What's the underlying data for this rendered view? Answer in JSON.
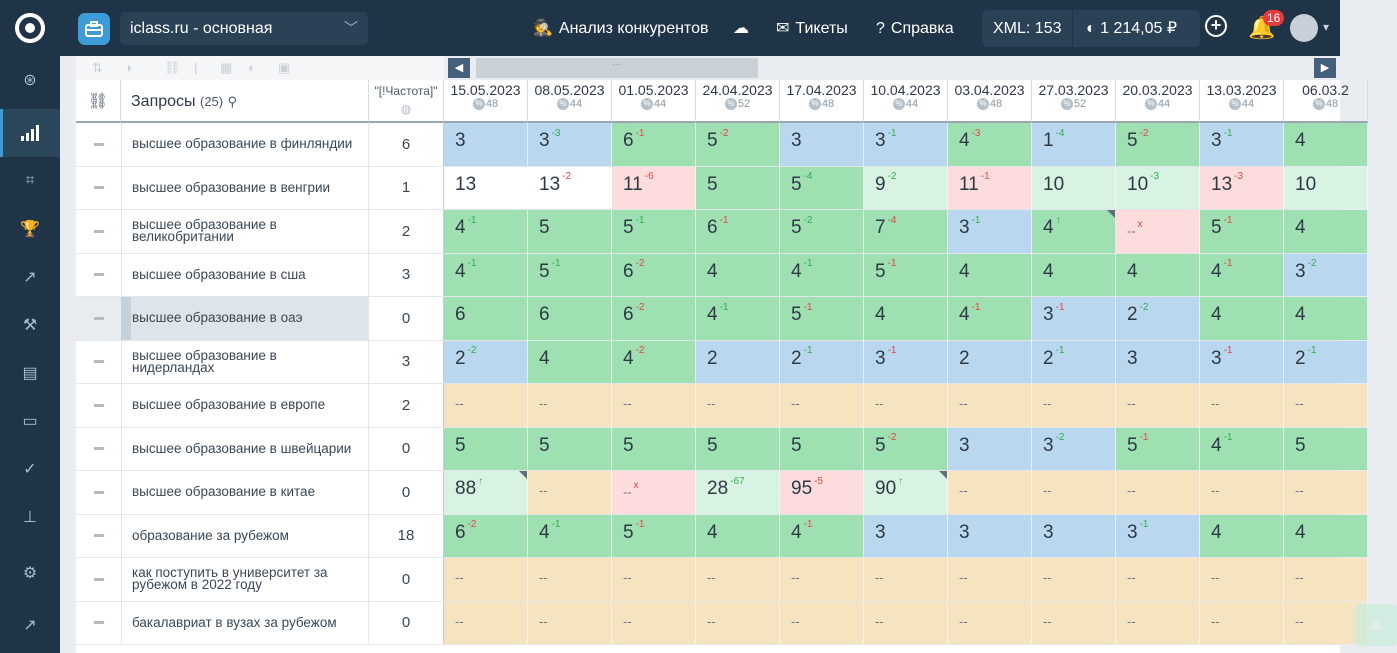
{
  "topbar": {
    "project": "iclass.ru - основная",
    "nav": [
      "Анализ конкурентов",
      "Тикеты",
      "Справка"
    ],
    "xml": "XML: 153",
    "balance": "1 214,05 ₽",
    "notifications": "16"
  },
  "table": {
    "query_header": "Запросы",
    "query_count": "(25)",
    "freq_header": "\"[!Частота]\"",
    "dates": [
      {
        "d": "15.05.2023",
        "n": "48"
      },
      {
        "d": "08.05.2023",
        "n": "44"
      },
      {
        "d": "01.05.2023",
        "n": "44"
      },
      {
        "d": "24.04.2023",
        "n": "52"
      },
      {
        "d": "17.04.2023",
        "n": "48"
      },
      {
        "d": "10.04.2023",
        "n": "44"
      },
      {
        "d": "03.04.2023",
        "n": "48"
      },
      {
        "d": "27.03.2023",
        "n": "52"
      },
      {
        "d": "20.03.2023",
        "n": "44"
      },
      {
        "d": "13.03.2023",
        "n": "44"
      },
      {
        "d": "06.03.2",
        "n": "48"
      }
    ],
    "rows": [
      {
        "q": "высшее образование в финляндии",
        "f": "6",
        "c": [
          [
            "3",
            "",
            ""
          ],
          [
            "3",
            "-3",
            "up"
          ],
          [
            "6",
            "-1",
            "dn"
          ],
          [
            "5",
            "-2",
            "dn"
          ],
          [
            "3",
            "",
            ""
          ],
          [
            "3",
            "-1",
            "up"
          ],
          [
            "4",
            "-3",
            "dn"
          ],
          [
            "1",
            "-4",
            "up"
          ],
          [
            "5",
            "-2",
            "dn"
          ],
          [
            "3",
            "-1",
            "up"
          ],
          [
            "4",
            "",
            ""
          ]
        ]
      },
      {
        "q": "высшее образование в венгрии",
        "f": "1",
        "c": [
          [
            "13",
            "",
            ""
          ],
          [
            "13",
            "-2",
            "dn"
          ],
          [
            "11",
            "-6",
            "dn"
          ],
          [
            "5",
            "",
            ""
          ],
          [
            "5",
            "-4",
            "up"
          ],
          [
            "9",
            "-2",
            "up"
          ],
          [
            "11",
            "-1",
            "dn"
          ],
          [
            "10",
            "",
            ""
          ],
          [
            "10",
            "-3",
            "up"
          ],
          [
            "13",
            "-3",
            "dn"
          ],
          [
            "10",
            "",
            ""
          ]
        ]
      },
      {
        "q": "высшее образование в великобритании",
        "f": "2",
        "c": [
          [
            "4",
            "-1",
            "up"
          ],
          [
            "5",
            "",
            ""
          ],
          [
            "5",
            "-1",
            "up"
          ],
          [
            "6",
            "-1",
            "dn"
          ],
          [
            "5",
            "-2",
            "up"
          ],
          [
            "7",
            "-4",
            "dn"
          ],
          [
            "3",
            "-1",
            "up"
          ],
          [
            "4",
            "↑",
            "up"
          ],
          [
            "--",
            "x",
            "dn"
          ],
          [
            "5",
            "-1",
            "dn"
          ],
          [
            "4",
            "",
            ""
          ]
        ]
      },
      {
        "q": "высшее образование в сша",
        "f": "3",
        "c": [
          [
            "4",
            "-1",
            "up"
          ],
          [
            "5",
            "-1",
            "up"
          ],
          [
            "6",
            "-2",
            "dn"
          ],
          [
            "4",
            "",
            ""
          ],
          [
            "4",
            "-1",
            "up"
          ],
          [
            "5",
            "-1",
            "dn"
          ],
          [
            "4",
            "",
            ""
          ],
          [
            "4",
            "",
            ""
          ],
          [
            "4",
            "",
            ""
          ],
          [
            "4",
            "-1",
            "dn"
          ],
          [
            "3",
            "-2",
            "up"
          ]
        ]
      },
      {
        "q": "высшее образование в оаэ",
        "f": "0",
        "c": [
          [
            "6",
            "",
            ""
          ],
          [
            "6",
            "",
            ""
          ],
          [
            "6",
            "-2",
            "dn"
          ],
          [
            "4",
            "-1",
            "up"
          ],
          [
            "5",
            "-1",
            "dn"
          ],
          [
            "4",
            "",
            ""
          ],
          [
            "4",
            "-1",
            "dn"
          ],
          [
            "3",
            "-1",
            "dn"
          ],
          [
            "2",
            "-2",
            "up"
          ],
          [
            "4",
            "",
            ""
          ],
          [
            "4",
            "",
            ""
          ]
        ]
      },
      {
        "q": "высшее образование в нидерландах",
        "f": "3",
        "c": [
          [
            "2",
            "-2",
            "up"
          ],
          [
            "4",
            "",
            ""
          ],
          [
            "4",
            "-2",
            "dn"
          ],
          [
            "2",
            "",
            ""
          ],
          [
            "2",
            "-1",
            "up"
          ],
          [
            "3",
            "-1",
            "dn"
          ],
          [
            "2",
            "",
            ""
          ],
          [
            "2",
            "-1",
            "up"
          ],
          [
            "3",
            "",
            ""
          ],
          [
            "3",
            "-1",
            "dn"
          ],
          [
            "2",
            "-1",
            "up"
          ]
        ]
      },
      {
        "q": "высшее образование в европе",
        "f": "2",
        "c": [
          [
            "--",
            "",
            ""
          ],
          [
            "--",
            "",
            ""
          ],
          [
            "--",
            "",
            ""
          ],
          [
            "--",
            "",
            ""
          ],
          [
            "--",
            "",
            ""
          ],
          [
            "--",
            "",
            ""
          ],
          [
            "--",
            "",
            ""
          ],
          [
            "--",
            "",
            ""
          ],
          [
            "--",
            "",
            ""
          ],
          [
            "--",
            "",
            ""
          ],
          [
            "--",
            "",
            ""
          ]
        ]
      },
      {
        "q": "высшее образование в швейцарии",
        "f": "0",
        "c": [
          [
            "5",
            "",
            ""
          ],
          [
            "5",
            "",
            ""
          ],
          [
            "5",
            "",
            ""
          ],
          [
            "5",
            "",
            ""
          ],
          [
            "5",
            "",
            ""
          ],
          [
            "5",
            "-2",
            "dn"
          ],
          [
            "3",
            "",
            ""
          ],
          [
            "3",
            "-2",
            "up"
          ],
          [
            "5",
            "-1",
            "dn"
          ],
          [
            "4",
            "-1",
            "up"
          ],
          [
            "5",
            "",
            ""
          ]
        ]
      },
      {
        "q": "высшее образование в китае",
        "f": "0",
        "c": [
          [
            "88",
            "↑",
            "up"
          ],
          [
            "--",
            "",
            ""
          ],
          [
            "--",
            "x",
            "dn"
          ],
          [
            "28",
            "-67",
            "up"
          ],
          [
            "95",
            "-5",
            "dn"
          ],
          [
            "90",
            "↑",
            "up"
          ],
          [
            "--",
            "",
            ""
          ],
          [
            "--",
            "",
            ""
          ],
          [
            "--",
            "",
            ""
          ],
          [
            "--",
            "",
            ""
          ],
          [
            "--",
            "",
            ""
          ]
        ]
      },
      {
        "q": "образование за рубежом",
        "f": "18",
        "c": [
          [
            "6",
            "-2",
            "dn"
          ],
          [
            "4",
            "-1",
            "up"
          ],
          [
            "5",
            "-1",
            "dn"
          ],
          [
            "4",
            "",
            ""
          ],
          [
            "4",
            "-1",
            "dn"
          ],
          [
            "3",
            "",
            ""
          ],
          [
            "3",
            "",
            ""
          ],
          [
            "3",
            "",
            ""
          ],
          [
            "3",
            "-1",
            "up"
          ],
          [
            "4",
            "",
            ""
          ],
          [
            "4",
            "",
            ""
          ]
        ]
      },
      {
        "q": "как поступить в университет за рубежом в 2022 году",
        "f": "0",
        "c": [
          [
            "--",
            "",
            ""
          ],
          [
            "--",
            "",
            ""
          ],
          [
            "--",
            "",
            ""
          ],
          [
            "--",
            "",
            ""
          ],
          [
            "--",
            "",
            ""
          ],
          [
            "--",
            "",
            ""
          ],
          [
            "--",
            "",
            ""
          ],
          [
            "--",
            "",
            ""
          ],
          [
            "--",
            "",
            ""
          ],
          [
            "--",
            "",
            ""
          ],
          [
            "--",
            "",
            ""
          ]
        ]
      },
      {
        "q": "бакалавриат в вузах за рубежом",
        "f": "0",
        "c": [
          [
            "--",
            "",
            ""
          ],
          [
            "--",
            "",
            ""
          ],
          [
            "--",
            "",
            ""
          ],
          [
            "--",
            "",
            ""
          ],
          [
            "--",
            "",
            ""
          ],
          [
            "--",
            "",
            ""
          ],
          [
            "--",
            "",
            ""
          ],
          [
            "--",
            "",
            ""
          ],
          [
            "--",
            "",
            ""
          ],
          [
            "--",
            "",
            ""
          ],
          [
            "--",
            "",
            ""
          ]
        ]
      }
    ]
  },
  "colors": {
    "blue": "#b9d7ef",
    "green": "#9ee0b1",
    "green_dark": "#86d6a0",
    "light_green": "#d8f3e1",
    "pink": "#fcdcdc",
    "sand": "#f6e4c1",
    "white": "#ffffff"
  }
}
